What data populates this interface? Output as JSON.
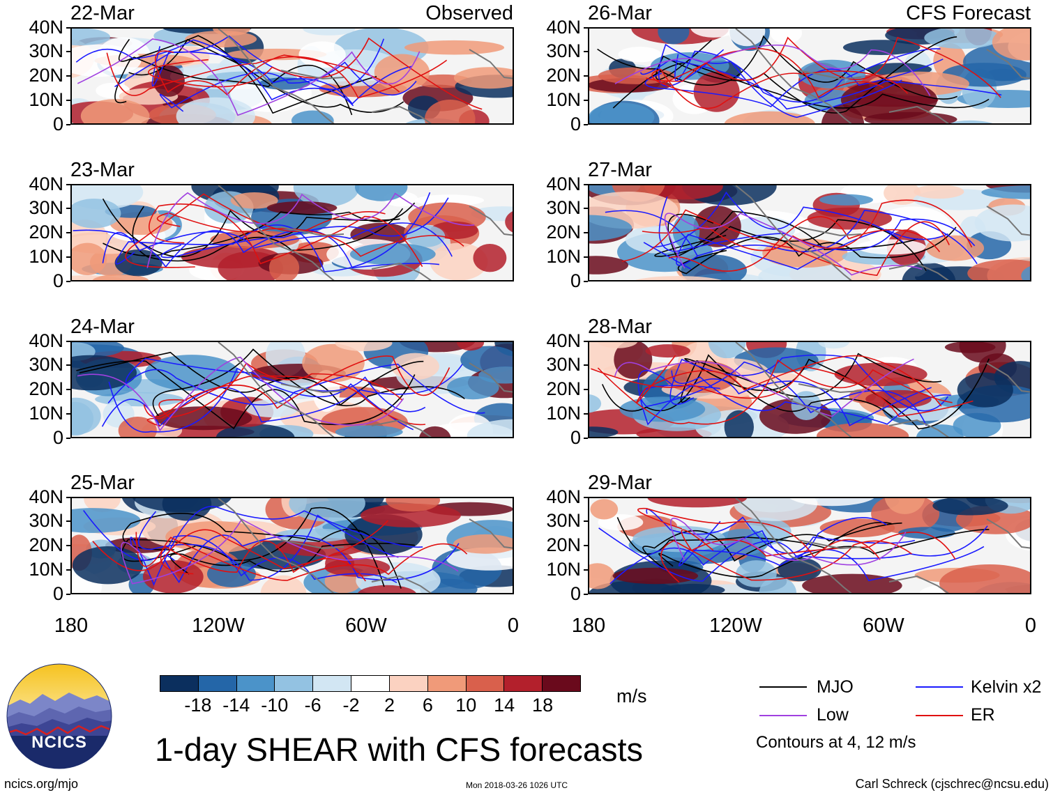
{
  "panels": {
    "observed_label": "Observed",
    "forecast_label": "CFS Forecast",
    "dates_left": [
      "22-Mar",
      "23-Mar",
      "24-Mar",
      "25-Mar"
    ],
    "dates_right": [
      "26-Mar",
      "27-Mar",
      "28-Mar",
      "29-Mar"
    ]
  },
  "axes": {
    "lat_ticks": [
      "40N",
      "30N",
      "20N",
      "10N",
      "0"
    ],
    "lon_ticks": [
      "180",
      "120W",
      "60W",
      "0"
    ]
  },
  "colorbar": {
    "labels": [
      "-18",
      "-14",
      "-10",
      "-6",
      "-2",
      "2",
      "6",
      "10",
      "14",
      "18"
    ],
    "colors": [
      "#0b2f5e",
      "#2466a8",
      "#4b93c9",
      "#93c2e2",
      "#d2e6f3",
      "#ffffff",
      "#fbd2c1",
      "#f09a79",
      "#d9604c",
      "#b3202c",
      "#6a0a1c"
    ],
    "units": "m/s"
  },
  "legend": {
    "mjo": "MJO",
    "kelvin": "Kelvin x2",
    "low": "Low",
    "er": "ER",
    "contours_note": "Contours at 4, 12 m/s",
    "colors": {
      "mjo": "#000000",
      "kelvin": "#1a1aff",
      "low": "#a040e0",
      "er": "#e01010"
    }
  },
  "title": "1-day SHEAR with CFS forecasts",
  "logo": {
    "text": "NCICS"
  },
  "footer": {
    "url": "ncics.org/mjo",
    "timestamp": "Mon 2018-03-26 1026 UTC",
    "credit": "Carl Schreck (cjschrec@ncsu.edu)"
  }
}
